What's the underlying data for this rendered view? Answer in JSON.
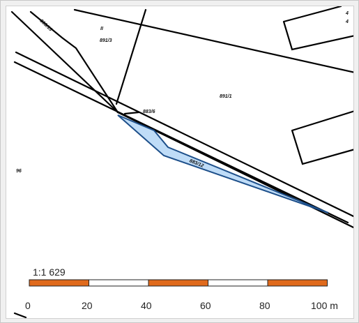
{
  "map": {
    "parcel_labels": {
      "p0": "893/13",
      "p1": "II",
      "p2": "891/3",
      "p3": "883/6",
      "p4": "891/1",
      "p5": "883/12",
      "p6": "4",
      "p7": "4",
      "p8": "96"
    },
    "highlight_color": "#bfdcf7",
    "highlight_outline": "#1d4f8a"
  },
  "scale": {
    "ratio": "1:1 629",
    "ticks": [
      "0",
      "20",
      "40",
      "60",
      "80",
      "100 m"
    ],
    "colors": [
      "#e06a1c",
      "#ffffff"
    ]
  }
}
